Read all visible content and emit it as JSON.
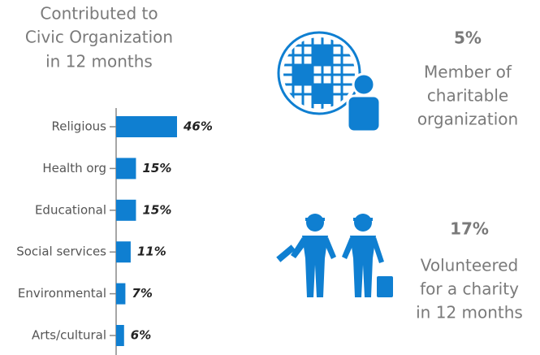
{
  "chart_data": {
    "type": "bar",
    "orientation": "horizontal",
    "title": [
      "Contributed to",
      "Civic Organization",
      "in 12 months"
    ],
    "categories": [
      "Religious",
      "Health org",
      "Educational",
      "Social services",
      "Environmental",
      "Arts/cultural"
    ],
    "values": [
      46,
      15,
      15,
      11,
      7,
      6
    ],
    "value_labels": [
      "46%",
      "15%",
      "15%",
      "11%",
      "7%",
      "6%"
    ],
    "color": "#0f7fd1"
  },
  "stats": [
    {
      "value": "5%",
      "label": [
        "Member of",
        "charitable",
        "organization"
      ]
    },
    {
      "value": "17%",
      "label": [
        "Volunteered",
        "for a charity",
        "in 12 months"
      ]
    }
  ]
}
